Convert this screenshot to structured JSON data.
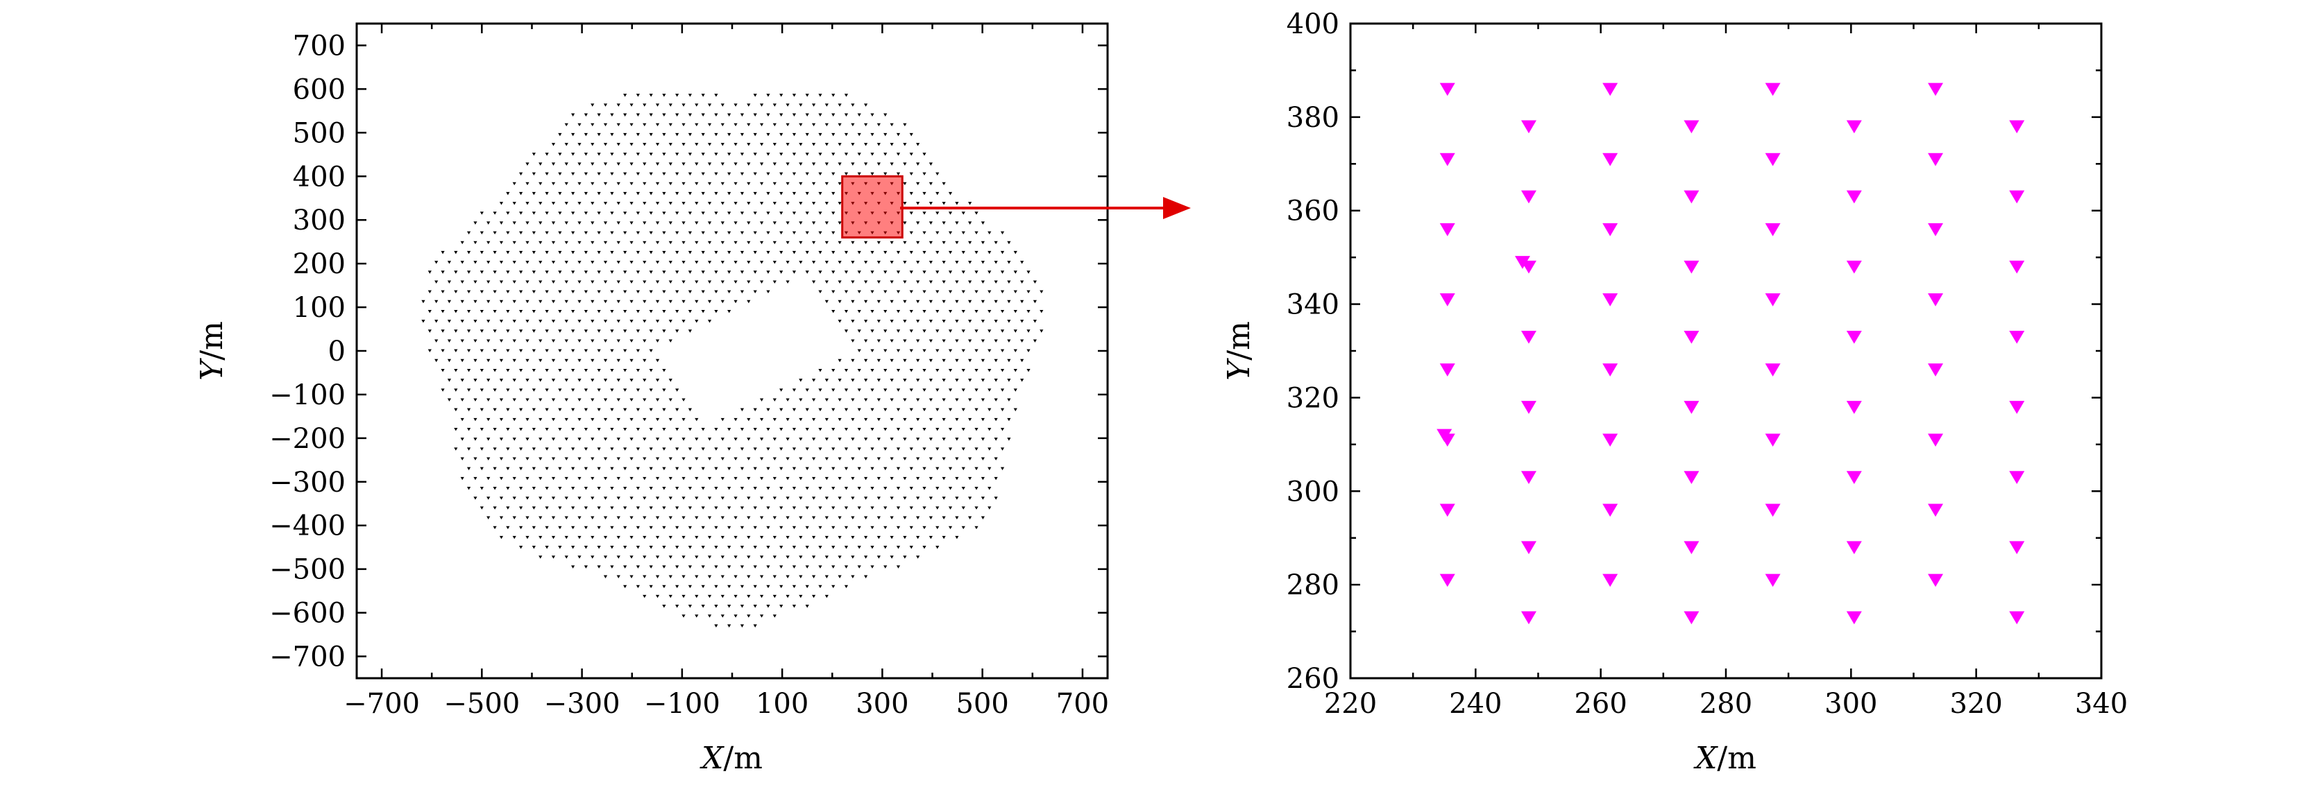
{
  "chart_data": [
    {
      "type": "scatter",
      "title": "",
      "xlabel": "X/m",
      "ylabel": "Y/m",
      "xlim": [
        -750,
        750
      ],
      "ylim": [
        -750,
        750
      ],
      "xticks": [
        -700,
        -500,
        -300,
        -100,
        100,
        300,
        500,
        700
      ],
      "yticks": [
        -700,
        -600,
        -500,
        -400,
        -300,
        -200,
        -100,
        0,
        100,
        200,
        300,
        400,
        500,
        600,
        700
      ],
      "marker": "small inverted triangle",
      "marker_color": "#000000",
      "series": [
        {
          "point_set": "dense staggered grid of points filling a disc of radius about 630 m centred at the origin, with a rotated rectangular empty area near the centre",
          "grid_spacing": 26,
          "disc_radius": 630,
          "void_center": [
            50,
            0
          ],
          "void_half_width": 170,
          "void_half_height": 95,
          "void_rotation_deg": 30
        }
      ],
      "highlight_region": {
        "xlim": [
          220,
          340
        ],
        "ylim": [
          260,
          400
        ],
        "fill": "#ff0000",
        "opacity": 0.5
      },
      "grid": false,
      "legend": false
    },
    {
      "type": "scatter",
      "title": "",
      "xlabel": "X/m",
      "ylabel": "Y/m",
      "xlim": [
        220,
        340
      ],
      "ylim": [
        260,
        400
      ],
      "xticks": [
        220,
        240,
        260,
        280,
        300,
        320,
        340
      ],
      "yticks": [
        260,
        280,
        300,
        320,
        340,
        360,
        380,
        400
      ],
      "marker": "inverted triangle",
      "marker_color": "#ff00ff",
      "series": [
        {
          "x": [
            235.5,
            235.5,
            235.5,
            235.5,
            235.5,
            235.5,
            235,
            235.5,
            235.5,
            248.5,
            248.5,
            248.5,
            247.5,
            248.5,
            248.5,
            248.5,
            248.5,
            248.5,
            261.5,
            261.5,
            261.5,
            261.5,
            261.5,
            261.5,
            261.5,
            261.5,
            274.5,
            274.5,
            274.5,
            274.5,
            274.5,
            274.5,
            274.5,
            274.5,
            287.5,
            287.5,
            287.5,
            287.5,
            287.5,
            287.5,
            287.5,
            287.5,
            300.5,
            300.5,
            300.5,
            300.5,
            300.5,
            300.5,
            300.5,
            300.5,
            313.5,
            313.5,
            313.5,
            313.5,
            313.5,
            313.5,
            313.5,
            313.5,
            326.5,
            326.5,
            326.5,
            326.5,
            326.5,
            326.5,
            326.5,
            326.5
          ],
          "y": [
            386,
            371,
            356,
            341,
            326,
            311,
            312,
            296,
            281,
            378,
            363,
            348,
            349,
            333,
            318,
            303,
            288,
            273,
            386,
            371,
            356,
            341,
            326,
            311,
            296,
            281,
            378,
            363,
            348,
            333,
            318,
            303,
            288,
            273,
            386,
            371,
            356,
            341,
            326,
            311,
            296,
            281,
            378,
            363,
            348,
            333,
            318,
            303,
            288,
            273,
            386,
            371,
            356,
            341,
            326,
            311,
            296,
            281,
            378,
            363,
            348,
            333,
            318,
            303,
            288,
            273
          ]
        }
      ],
      "grid": false,
      "legend": false
    }
  ]
}
